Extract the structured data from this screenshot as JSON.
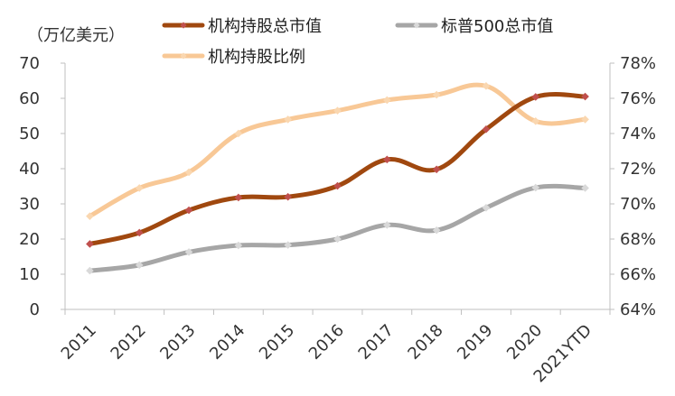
{
  "chart_data": {
    "type": "line",
    "categories": [
      "2011",
      "2012",
      "2013",
      "2014",
      "2015",
      "2016",
      "2017",
      "2018",
      "2019",
      "2020",
      "2021YTD"
    ],
    "y_left_unit": "（万亿美元）",
    "y_left_lim": [
      0,
      70
    ],
    "y_left_ticks": [
      "0",
      "10",
      "20",
      "30",
      "40",
      "50",
      "60",
      "70"
    ],
    "y_right_lim": [
      64,
      78
    ],
    "y_right_ticks": [
      "64%",
      "66%",
      "68%",
      "70%",
      "72%",
      "74%",
      "76%",
      "78%"
    ],
    "grid": false,
    "legend_position": "top",
    "series": [
      {
        "name": "机构持股总市值",
        "axis": "left",
        "color": "#A0480F",
        "marker_color": "#C0504D",
        "values": [
          18.6,
          21.8,
          28.2,
          31.8,
          32.0,
          35.1,
          42.6,
          39.8,
          51.2,
          60.4,
          60.5
        ]
      },
      {
        "name": "标普500总市值",
        "axis": "left",
        "color": "#A6A6A6",
        "marker_color": "#D9D9D9",
        "values": [
          11.0,
          12.6,
          16.3,
          18.2,
          18.3,
          20.0,
          24.0,
          22.5,
          28.9,
          34.6,
          34.5
        ]
      },
      {
        "name": "机构持股比例",
        "axis": "right",
        "color": "#F8C896",
        "marker_color": "#FAD7B0",
        "values": [
          69.3,
          70.9,
          71.8,
          74.0,
          74.8,
          75.3,
          75.9,
          76.2,
          76.7,
          74.7,
          74.8
        ]
      }
    ]
  }
}
